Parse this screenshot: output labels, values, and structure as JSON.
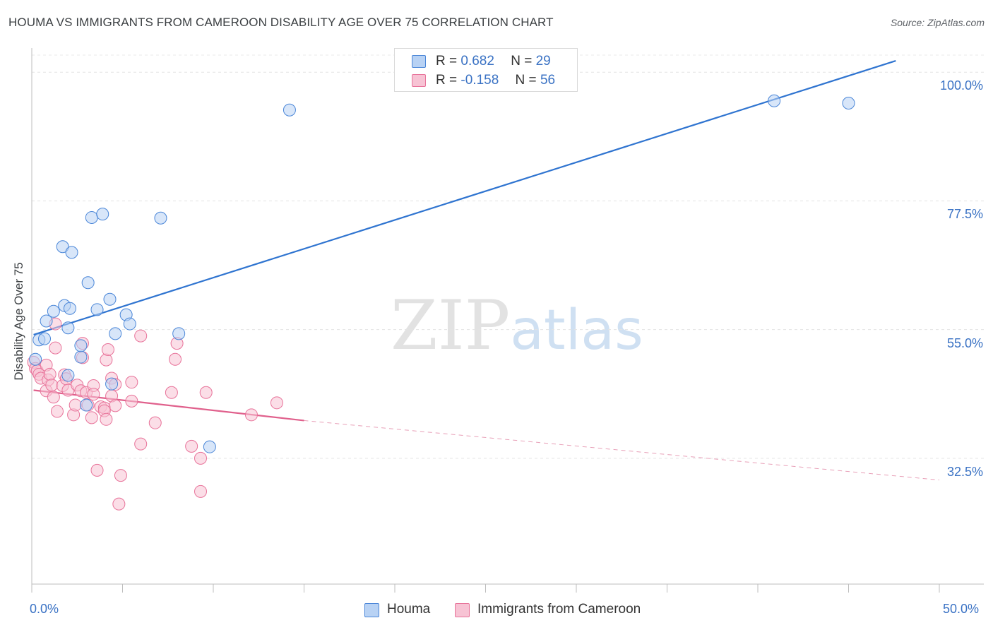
{
  "title": "HOUMA VS IMMIGRANTS FROM CAMEROON DISABILITY AGE OVER 75 CORRELATION CHART",
  "source": "Source: ZipAtlas.com",
  "watermark": {
    "part1": "ZIP",
    "part2": "atlas"
  },
  "colors": {
    "houma": "#4a86d8",
    "houma_fill": "#b8d2f4",
    "cameroon": "#e8739a",
    "cameroon_fill": "#f7c3d4",
    "accent_text": "#3a72c4"
  },
  "legend": {
    "houma": {
      "r_label": "R =",
      "r_value": "0.682",
      "n_label": "N =",
      "n_value": "29"
    },
    "cameroon": {
      "r_label": "R =",
      "r_value": "-0.158",
      "n_label": "N =",
      "n_value": "56"
    }
  },
  "chart_data": {
    "type": "scatter",
    "title": "HOUMA VS IMMIGRANTS FROM CAMEROON DISABILITY AGE OVER 75 CORRELATION CHART",
    "xlabel": "",
    "ylabel": "Disability Age Over 75",
    "xlim": [
      0,
      50
    ],
    "ylim": [
      10.5,
      103
    ],
    "x_tick_labels": [
      "0.0%",
      "50.0%"
    ],
    "y_ticks": [
      32.5,
      55.0,
      77.5,
      100.0
    ],
    "y_tick_labels": [
      "32.5%",
      "55.0%",
      "77.5%",
      "100.0%"
    ],
    "series": [
      {
        "name": "Houma",
        "color": "#4a86d8",
        "points": [
          [
            0.2,
            49.8
          ],
          [
            0.4,
            53.2
          ],
          [
            0.7,
            53.4
          ],
          [
            0.8,
            56.5
          ],
          [
            1.2,
            58.2
          ],
          [
            1.7,
            69.5
          ],
          [
            1.8,
            59.2
          ],
          [
            2.0,
            55.3
          ],
          [
            2.0,
            47.0
          ],
          [
            2.1,
            58.7
          ],
          [
            2.2,
            68.5
          ],
          [
            2.7,
            50.2
          ],
          [
            2.7,
            52.2
          ],
          [
            3.0,
            41.8
          ],
          [
            3.1,
            63.2
          ],
          [
            3.3,
            74.6
          ],
          [
            3.6,
            58.5
          ],
          [
            3.9,
            75.2
          ],
          [
            4.3,
            60.3
          ],
          [
            4.4,
            45.5
          ],
          [
            4.6,
            54.3
          ],
          [
            5.2,
            57.6
          ],
          [
            5.4,
            56.0
          ],
          [
            7.1,
            74.5
          ],
          [
            8.1,
            54.3
          ],
          [
            9.8,
            34.5
          ],
          [
            14.2,
            93.4
          ],
          [
            40.9,
            95.0
          ],
          [
            45.0,
            94.6
          ]
        ],
        "trend": {
          "x_start": 0.1,
          "y_start": 54.1,
          "x_end": 47.6,
          "y_end": 102.0
        }
      },
      {
        "name": "Immigrants from Cameroon",
        "color": "#e8739a",
        "points": [
          [
            0.1,
            49.3
          ],
          [
            0.2,
            48.2
          ],
          [
            0.3,
            47.8
          ],
          [
            0.4,
            47.2
          ],
          [
            0.5,
            46.5
          ],
          [
            0.8,
            48.8
          ],
          [
            0.8,
            44.3
          ],
          [
            0.9,
            46.2
          ],
          [
            1.0,
            47.2
          ],
          [
            1.1,
            45.3
          ],
          [
            1.2,
            43.2
          ],
          [
            1.3,
            56.0
          ],
          [
            1.3,
            51.8
          ],
          [
            1.4,
            40.7
          ],
          [
            1.7,
            45.2
          ],
          [
            1.8,
            47.1
          ],
          [
            1.9,
            46.4
          ],
          [
            2.0,
            44.4
          ],
          [
            2.3,
            40.1
          ],
          [
            2.4,
            41.8
          ],
          [
            2.5,
            45.3
          ],
          [
            2.7,
            44.3
          ],
          [
            2.8,
            50.1
          ],
          [
            2.8,
            52.6
          ],
          [
            3.0,
            44.0
          ],
          [
            3.1,
            41.8
          ],
          [
            3.3,
            39.6
          ],
          [
            3.4,
            45.2
          ],
          [
            3.4,
            43.7
          ],
          [
            3.6,
            30.4
          ],
          [
            3.8,
            41.5
          ],
          [
            4.0,
            41.3
          ],
          [
            4.0,
            40.8
          ],
          [
            4.1,
            39.3
          ],
          [
            4.1,
            49.7
          ],
          [
            4.2,
            51.5
          ],
          [
            4.4,
            46.5
          ],
          [
            4.4,
            43.4
          ],
          [
            4.6,
            41.7
          ],
          [
            4.6,
            45.4
          ],
          [
            5.5,
            45.8
          ],
          [
            5.5,
            42.5
          ],
          [
            6.0,
            53.9
          ],
          [
            6.0,
            35.0
          ],
          [
            6.8,
            38.7
          ],
          [
            7.7,
            44.0
          ],
          [
            7.9,
            49.8
          ],
          [
            8.0,
            52.6
          ],
          [
            4.8,
            24.5
          ],
          [
            4.9,
            29.5
          ],
          [
            8.8,
            34.6
          ],
          [
            9.3,
            32.5
          ],
          [
            9.3,
            26.7
          ],
          [
            9.6,
            44.0
          ],
          [
            12.1,
            40.1
          ],
          [
            13.5,
            42.2
          ]
        ],
        "trend": {
          "x_start": 0.1,
          "y_start": 44.4,
          "x_end": 15.0,
          "y_end": 39.1
        },
        "trend_projection": {
          "x_start": 15.0,
          "y_start": 39.1,
          "x_end": 50.0,
          "y_end": 28.7
        }
      }
    ],
    "bottom_legend": [
      "Houma",
      "Immigrants from Cameroon"
    ]
  }
}
